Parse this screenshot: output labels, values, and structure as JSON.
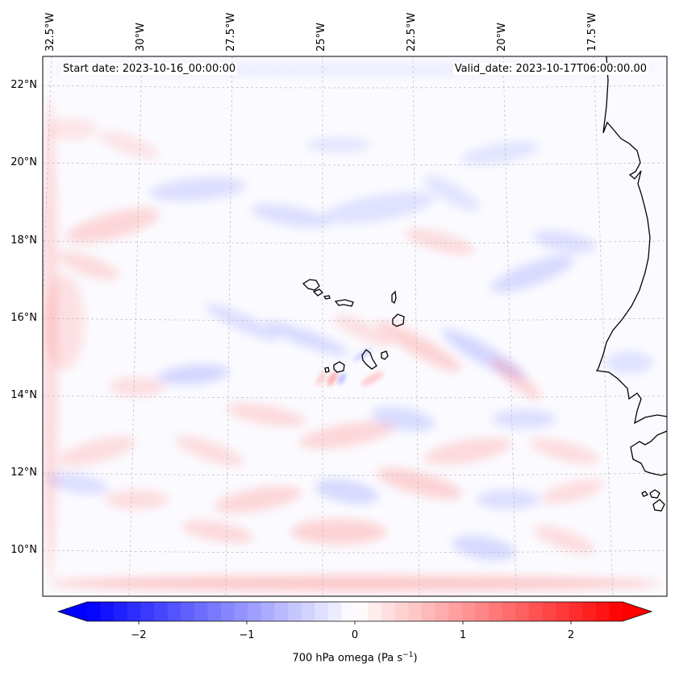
{
  "map": {
    "header": {
      "start": "Start date: 2023-10-16_00:00:00",
      "valid": "Valid_date: 2023-10-17T06:00:00.00"
    },
    "lon_labels": [
      "32.5°W",
      "30°W",
      "27.5°W",
      "25°W",
      "22.5°W",
      "20°W",
      "17.5°W"
    ],
    "lat_labels": [
      "22°N",
      "20°N",
      "18°N",
      "16°N",
      "14°N",
      "12°N",
      "10°N"
    ],
    "colormap": {
      "negative": "#0000ff",
      "zero": "#ffffff",
      "positive": "#ff0000",
      "coast": "#000000"
    }
  },
  "colorbar": {
    "ticks": [
      "−2",
      "−1",
      "0",
      "1",
      "2"
    ],
    "label_main": "700 hPa omega (Pa s",
    "label_exp": "−1",
    "label_end": ")"
  }
}
